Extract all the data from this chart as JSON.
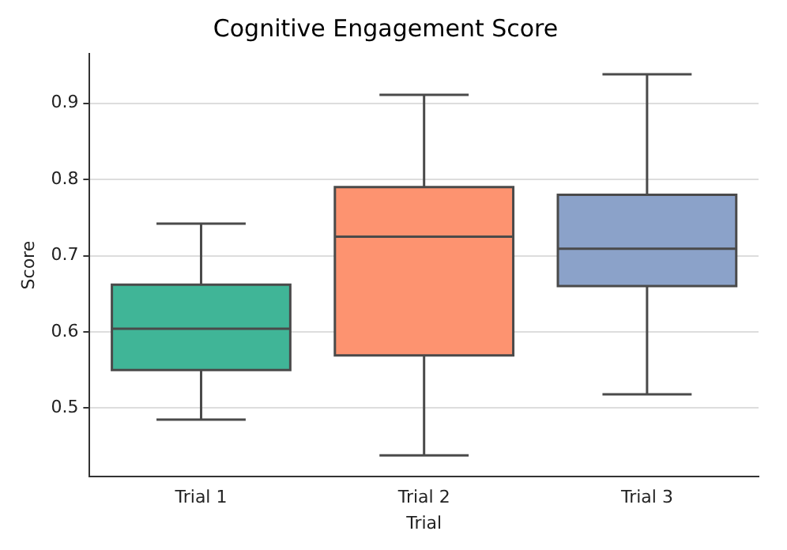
{
  "chart_data": {
    "type": "box",
    "title": "Cognitive Engagement Score",
    "xlabel": "Trial",
    "ylabel": "Score",
    "categories": [
      "Trial 1",
      "Trial 2",
      "Trial 3"
    ],
    "colors": [
      "#40b597",
      "#fd9370",
      "#8ba2c9"
    ],
    "boxes": [
      {
        "low": 0.485,
        "q1": 0.55,
        "median": 0.604,
        "q3": 0.662,
        "high": 0.742
      },
      {
        "low": 0.438,
        "q1": 0.569,
        "median": 0.725,
        "q3": 0.79,
        "high": 0.911
      },
      {
        "low": 0.518,
        "q1": 0.66,
        "median": 0.709,
        "q3": 0.78,
        "high": 0.938
      }
    ],
    "ylim": [
      0.41,
      0.965
    ],
    "yticks": [
      0.5,
      0.6,
      0.7,
      0.8,
      0.9
    ],
    "grid": "y",
    "legend": false
  }
}
